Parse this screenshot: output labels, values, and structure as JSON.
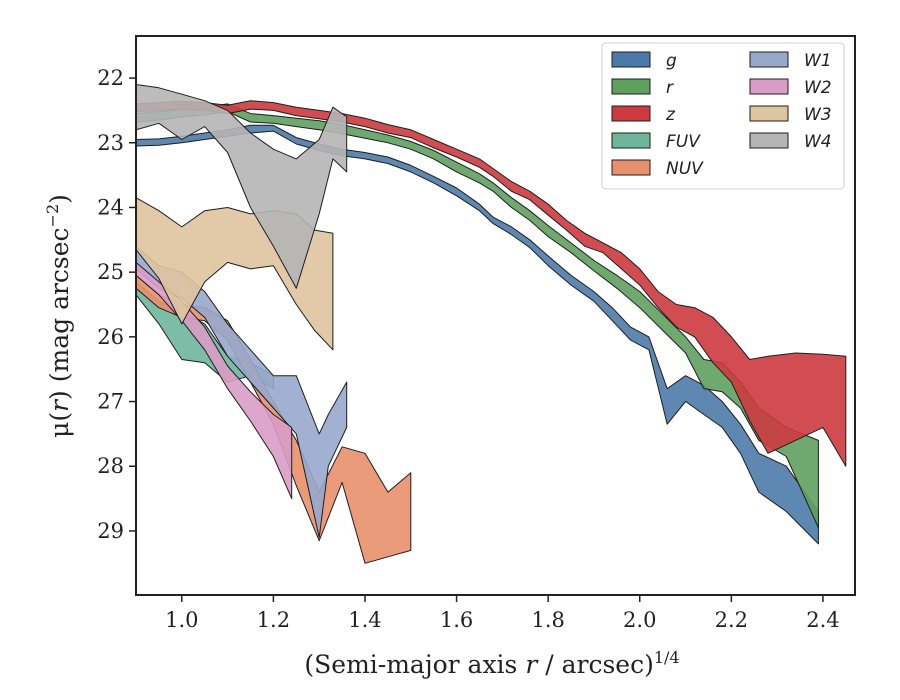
{
  "chart_data": {
    "type": "area",
    "xlabel": "(Semi-major axis r / arcsec)",
    "xlabel_parts": {
      "pre": "(Semi-major axis ",
      "var": "r",
      "post": " / arcsec)",
      "sup": "1/4"
    },
    "ylabel": "μ(r) (mag arcsec⁻²)",
    "ylabel_parts": {
      "mu": "μ(",
      "var": "r",
      "mid": ") (mag arcsec",
      "sup": "−2",
      "end": ")"
    },
    "xlim": [
      0.9,
      2.47
    ],
    "ylim": [
      29.99,
      21.35
    ],
    "y_inverted": true,
    "xticks": [
      1.0,
      1.2,
      1.4,
      1.6,
      1.8,
      2.0,
      2.2,
      2.4
    ],
    "xtick_labels": [
      "1.0",
      "1.2",
      "1.4",
      "1.6",
      "1.8",
      "2.0",
      "2.2",
      "2.4"
    ],
    "yticks": [
      22,
      23,
      24,
      25,
      26,
      27,
      28,
      29
    ],
    "ytick_labels": [
      "22",
      "23",
      "24",
      "25",
      "26",
      "27",
      "28",
      "29"
    ],
    "grid": false,
    "legend": {
      "placement": "top-right",
      "columns": 2
    },
    "series": [
      {
        "name": "g",
        "color": "#4c7aa8",
        "x": [
          0.9,
          0.95,
          1.0,
          1.05,
          1.1,
          1.15,
          1.2,
          1.25,
          1.3,
          1.35,
          1.4,
          1.45,
          1.5,
          1.55,
          1.6,
          1.65,
          1.68,
          1.72,
          1.76,
          1.8,
          1.85,
          1.9,
          1.94,
          1.98,
          2.02,
          2.06,
          2.1,
          2.14,
          2.18,
          2.22,
          2.26,
          2.32,
          2.39
        ],
        "y1": [
          22.95,
          22.94,
          22.9,
          22.85,
          22.8,
          22.73,
          22.73,
          22.92,
          23.02,
          23.1,
          23.15,
          23.22,
          23.35,
          23.52,
          23.7,
          23.95,
          24.15,
          24.3,
          24.5,
          24.75,
          25.05,
          25.3,
          25.55,
          25.85,
          26.0,
          26.8,
          26.6,
          26.75,
          27.0,
          27.35,
          27.8,
          28.0,
          28.7
        ],
        "y2": [
          23.05,
          23.04,
          23.0,
          22.95,
          22.9,
          22.85,
          22.82,
          23.02,
          23.12,
          23.2,
          23.25,
          23.32,
          23.45,
          23.62,
          23.82,
          24.05,
          24.25,
          24.42,
          24.62,
          24.9,
          25.2,
          25.45,
          25.75,
          26.05,
          26.2,
          27.35,
          27.0,
          27.2,
          27.4,
          27.8,
          28.4,
          28.7,
          29.2
        ]
      },
      {
        "name": "r",
        "color": "#5fa05f",
        "x": [
          0.9,
          0.95,
          1.0,
          1.05,
          1.1,
          1.15,
          1.2,
          1.25,
          1.3,
          1.35,
          1.4,
          1.45,
          1.5,
          1.55,
          1.6,
          1.65,
          1.68,
          1.72,
          1.76,
          1.8,
          1.85,
          1.9,
          1.95,
          2.0,
          2.05,
          2.1,
          2.14,
          2.18,
          2.22,
          2.26,
          2.32,
          2.39
        ],
        "y1": [
          22.55,
          22.52,
          22.48,
          22.45,
          22.4,
          22.55,
          22.58,
          22.62,
          22.66,
          22.72,
          22.8,
          22.88,
          22.98,
          23.12,
          23.3,
          23.48,
          23.62,
          23.85,
          24.05,
          24.28,
          24.55,
          24.82,
          25.05,
          25.3,
          25.65,
          26.0,
          26.35,
          26.4,
          26.7,
          27.1,
          27.4,
          27.6
        ],
        "y2": [
          22.68,
          22.65,
          22.6,
          22.57,
          22.52,
          22.68,
          22.7,
          22.75,
          22.8,
          22.86,
          22.93,
          23.0,
          23.1,
          23.25,
          23.45,
          23.62,
          23.75,
          24.0,
          24.2,
          24.45,
          24.7,
          24.98,
          25.25,
          25.55,
          25.9,
          26.25,
          26.8,
          26.85,
          27.1,
          27.6,
          27.85,
          28.95
        ]
      },
      {
        "name": "z",
        "color": "#cc3a3f",
        "x": [
          0.9,
          0.95,
          1.0,
          1.05,
          1.1,
          1.15,
          1.2,
          1.25,
          1.3,
          1.35,
          1.4,
          1.45,
          1.5,
          1.55,
          1.6,
          1.65,
          1.68,
          1.72,
          1.76,
          1.8,
          1.84,
          1.88,
          1.92,
          1.96,
          2.0,
          2.04,
          2.08,
          2.12,
          2.16,
          2.2,
          2.24,
          2.28,
          2.34,
          2.4,
          2.45
        ],
        "y1": [
          22.4,
          22.38,
          22.36,
          22.38,
          22.42,
          22.35,
          22.38,
          22.45,
          22.5,
          22.55,
          22.62,
          22.72,
          22.8,
          22.95,
          23.1,
          23.25,
          23.4,
          23.6,
          23.75,
          23.95,
          24.2,
          24.4,
          24.55,
          24.7,
          24.95,
          25.3,
          25.5,
          25.55,
          25.7,
          26.0,
          26.35,
          26.3,
          26.25,
          26.27,
          26.3
        ],
        "y2": [
          22.52,
          22.5,
          22.48,
          22.5,
          22.55,
          22.48,
          22.5,
          22.58,
          22.63,
          22.68,
          22.75,
          22.85,
          22.92,
          23.08,
          23.22,
          23.38,
          23.52,
          23.75,
          23.88,
          24.12,
          24.35,
          24.6,
          24.7,
          24.95,
          25.2,
          25.55,
          25.85,
          26.0,
          26.4,
          26.7,
          27.3,
          27.8,
          27.6,
          27.4,
          28.0
        ]
      },
      {
        "name": "FUV",
        "color": "#6fb59c",
        "x": [
          0.9,
          0.95,
          1.0,
          1.05,
          1.1,
          1.15,
          1.2
        ],
        "y1": [
          25.15,
          25.45,
          25.6,
          25.8,
          26.3,
          26.4,
          26.6
        ],
        "y2": [
          25.35,
          25.8,
          26.35,
          26.4,
          26.7,
          26.6,
          26.8
        ]
      },
      {
        "name": "NUV",
        "color": "#e8906b",
        "x": [
          0.9,
          0.95,
          1.0,
          1.05,
          1.1,
          1.15,
          1.2,
          1.25,
          1.3,
          1.35,
          1.4,
          1.45,
          1.5
        ],
        "y1": [
          25.05,
          25.35,
          25.5,
          25.55,
          25.75,
          26.35,
          27.0,
          27.6,
          28.4,
          27.7,
          27.8,
          28.4,
          28.1
        ],
        "y2": [
          25.25,
          25.55,
          25.7,
          25.75,
          26.05,
          26.7,
          27.35,
          28.3,
          29.15,
          28.25,
          29.5,
          29.4,
          29.3
        ]
      },
      {
        "name": "W1",
        "color": "#98a8cc",
        "x": [
          0.9,
          0.95,
          1.0,
          1.05,
          1.1,
          1.15,
          1.2,
          1.25,
          1.3,
          1.32,
          1.36
        ],
        "y1": [
          24.6,
          24.9,
          25.0,
          25.3,
          25.8,
          26.2,
          26.6,
          26.6,
          27.5,
          27.2,
          26.7
        ],
        "y2": [
          24.95,
          25.25,
          25.4,
          25.7,
          26.3,
          26.7,
          27.1,
          27.5,
          29.1,
          28.0,
          27.4
        ]
      },
      {
        "name": "W2",
        "color": "#d99cc6",
        "x": [
          0.9,
          0.95,
          1.0,
          1.05,
          1.1,
          1.15,
          1.2,
          1.24
        ],
        "y1": [
          24.85,
          25.15,
          25.45,
          25.85,
          26.45,
          26.85,
          27.2,
          27.4
        ],
        "y2": [
          25.05,
          25.35,
          25.75,
          26.2,
          26.8,
          27.3,
          27.85,
          28.5
        ]
      },
      {
        "name": "W3",
        "color": "#dfc4a0",
        "x": [
          0.9,
          0.95,
          1.0,
          1.05,
          1.1,
          1.15,
          1.2,
          1.25,
          1.29,
          1.33
        ],
        "y1": [
          23.85,
          24.05,
          24.3,
          24.05,
          24.0,
          24.1,
          24.05,
          24.1,
          24.35,
          24.4
        ],
        "y2": [
          24.65,
          25.1,
          25.8,
          25.15,
          24.85,
          24.95,
          24.9,
          25.5,
          25.9,
          26.2
        ]
      },
      {
        "name": "W4",
        "color": "#b5b5b5",
        "x": [
          0.9,
          0.95,
          1.0,
          1.05,
          1.1,
          1.15,
          1.2,
          1.25,
          1.3,
          1.33,
          1.36
        ],
        "y1": [
          22.1,
          22.15,
          22.25,
          22.35,
          22.5,
          22.85,
          23.1,
          23.25,
          22.95,
          22.45,
          22.6
        ],
        "y2": [
          22.8,
          22.7,
          22.95,
          22.75,
          23.15,
          24.0,
          24.6,
          25.25,
          24.1,
          23.25,
          23.45
        ]
      }
    ]
  }
}
